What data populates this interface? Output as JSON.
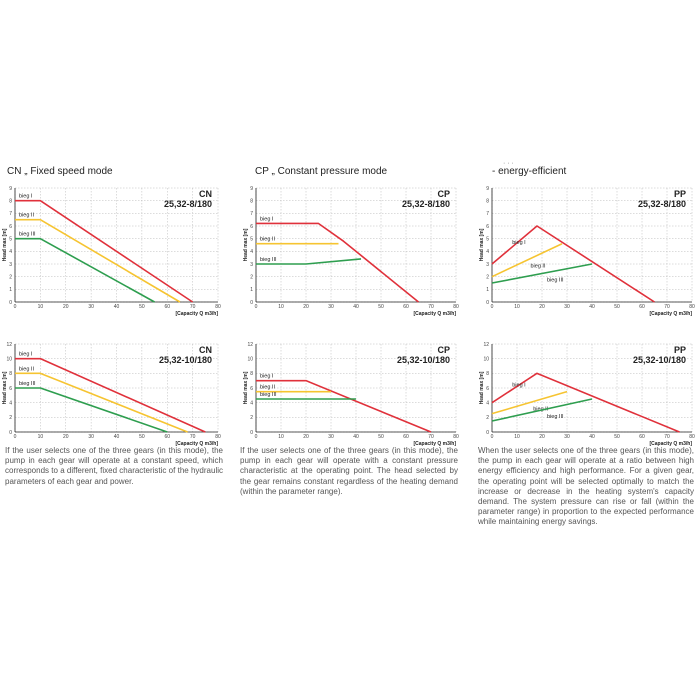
{
  "headings": {
    "cn": "CN „ Fixed speed mode",
    "cp": "CP „ Constant pressure mode",
    "pp": "- energy-efficient"
  },
  "descriptions": {
    "cn": "If the user selects one of the three gears (in this mode), the pump in each gear will operate at a constant speed, which corresponds to a different, fixed characteristic of the hydraulic parameters of each gear and power.",
    "cp": "If the user selects one of the three gears (in this mode), the pump in each gear will operate with a constant pressure characteristic at the operating point. The head selected by the gear remains constant regardless of the heating demand (within the parameter range).",
    "pp": "When the user selects one of the three gears (in this mode), the pump in each gear will operate at a ratio between high energy efficiency and high performance. For a given gear, the operating point will be selected optimally to match the increase or decrease in the heating system's capacity demand. The system pressure can rise or fall (within the parameter range) in proportion to the expected performance while maintaining energy savings."
  },
  "colors": {
    "red": "#e0313b",
    "yellow": "#f6c431",
    "green": "#2e9e4f",
    "grid": "#b8b8b8",
    "axis": "#222222"
  },
  "chart_data": [
    {
      "type": "line",
      "mode": "CN",
      "title": "CN",
      "subtitle": "25,32-8/180",
      "ylabel": "Head max [m]",
      "xlabel": "[Capacity Q m3/h]",
      "xlim": [
        0,
        80
      ],
      "ylim": [
        0,
        9
      ],
      "xticks": [
        "0",
        "10",
        "20",
        "30",
        "40",
        "50",
        "60",
        "70",
        "80"
      ],
      "yticks": [
        "0",
        "1",
        "2",
        "3",
        "4",
        "5",
        "6",
        "7",
        "8",
        "9"
      ],
      "grid": true,
      "series": [
        {
          "name": "bieg I",
          "color": "red",
          "x": [
            0,
            10,
            70
          ],
          "y": [
            8,
            8,
            0
          ]
        },
        {
          "name": "bieg II",
          "color": "yellow",
          "x": [
            0,
            10,
            65
          ],
          "y": [
            6.5,
            6.5,
            0
          ]
        },
        {
          "name": "bieg III",
          "color": "green",
          "x": [
            0,
            10,
            55
          ],
          "y": [
            5,
            5,
            0
          ]
        }
      ]
    },
    {
      "type": "line",
      "mode": "CP",
      "title": "CP",
      "subtitle": "25,32-8/180",
      "ylabel": "Head max [m]",
      "xlabel": "[Capacity Q m3/h]",
      "xlim": [
        0,
        80
      ],
      "ylim": [
        0,
        9
      ],
      "xticks": [
        "0",
        "10",
        "20",
        "30",
        "40",
        "50",
        "60",
        "70",
        "80"
      ],
      "yticks": [
        "0",
        "1",
        "2",
        "3",
        "4",
        "5",
        "6",
        "7",
        "8",
        "9"
      ],
      "grid": true,
      "series": [
        {
          "name": "bieg I",
          "color": "red",
          "x": [
            0,
            25,
            35,
            65
          ],
          "y": [
            6.2,
            6.2,
            4.8,
            0
          ]
        },
        {
          "name": "bieg II",
          "color": "yellow",
          "x": [
            0,
            33
          ],
          "y": [
            4.6,
            4.6
          ]
        },
        {
          "name": "bieg III",
          "color": "green",
          "x": [
            0,
            20,
            42
          ],
          "y": [
            3,
            3,
            3.4
          ]
        }
      ]
    },
    {
      "type": "line",
      "mode": "PP",
      "title": "PP",
      "subtitle": "25,32-8/180",
      "ylabel": "Head max [m]",
      "xlabel": "[Capacity Q m3/h]",
      "xlim": [
        0,
        80
      ],
      "ylim": [
        0,
        9
      ],
      "xticks": [
        "0",
        "10",
        "20",
        "30",
        "40",
        "50",
        "60",
        "70",
        "80"
      ],
      "yticks": [
        "0",
        "1",
        "2",
        "3",
        "4",
        "5",
        "6",
        "7",
        "8",
        "9"
      ],
      "grid": true,
      "series": [
        {
          "name": "bieg I",
          "color": "red",
          "x": [
            0,
            18,
            65
          ],
          "y": [
            3,
            6,
            0
          ]
        },
        {
          "name": "bieg II",
          "color": "yellow",
          "x": [
            0,
            28
          ],
          "y": [
            2,
            4.6
          ]
        },
        {
          "name": "bieg III",
          "color": "green",
          "x": [
            0,
            40
          ],
          "y": [
            1.5,
            3
          ]
        }
      ]
    },
    {
      "type": "line",
      "mode": "CN",
      "title": "CN",
      "subtitle": "25,32-10/180",
      "ylabel": "Head max [m]",
      "xlabel": "[Capacity Q m3/h]",
      "xlim": [
        0,
        80
      ],
      "ylim": [
        0,
        12
      ],
      "xticks": [
        "0",
        "10",
        "20",
        "30",
        "40",
        "50",
        "60",
        "70",
        "80"
      ],
      "yticks": [
        "0",
        "2",
        "4",
        "6",
        "8",
        "10",
        "12"
      ],
      "grid": true,
      "series": [
        {
          "name": "bieg I",
          "color": "red",
          "x": [
            0,
            10,
            75
          ],
          "y": [
            10,
            10,
            0
          ]
        },
        {
          "name": "bieg II",
          "color": "yellow",
          "x": [
            0,
            10,
            68
          ],
          "y": [
            8,
            8,
            0
          ]
        },
        {
          "name": "bieg III",
          "color": "green",
          "x": [
            0,
            10,
            60
          ],
          "y": [
            6,
            6,
            0
          ]
        }
      ]
    },
    {
      "type": "line",
      "mode": "CP",
      "title": "CP",
      "subtitle": "25,32-10/180",
      "ylabel": "Head max [m]",
      "xlabel": "[Capacity Q m3/h]",
      "xlim": [
        0,
        80
      ],
      "ylim": [
        0,
        12
      ],
      "xticks": [
        "0",
        "10",
        "20",
        "30",
        "40",
        "50",
        "60",
        "70",
        "80"
      ],
      "yticks": [
        "0",
        "2",
        "4",
        "6",
        "8",
        "10",
        "12"
      ],
      "grid": true,
      "series": [
        {
          "name": "bieg I",
          "color": "red",
          "x": [
            0,
            20,
            70
          ],
          "y": [
            7,
            7,
            0
          ]
        },
        {
          "name": "bieg II",
          "color": "yellow",
          "x": [
            0,
            30
          ],
          "y": [
            5.5,
            5.5
          ]
        },
        {
          "name": "bieg III",
          "color": "green",
          "x": [
            0,
            40
          ],
          "y": [
            4.5,
            4.5
          ]
        }
      ]
    },
    {
      "type": "line",
      "mode": "PP",
      "title": "PP",
      "subtitle": "25,32-10/180",
      "ylabel": "Head max [m]",
      "xlabel": "[Capacity Q m3/h]",
      "xlim": [
        0,
        80
      ],
      "ylim": [
        0,
        12
      ],
      "xticks": [
        "0",
        "10",
        "20",
        "30",
        "40",
        "50",
        "60",
        "70",
        "80"
      ],
      "yticks": [
        "0",
        "2",
        "4",
        "6",
        "8",
        "10",
        "12"
      ],
      "grid": true,
      "series": [
        {
          "name": "bieg I",
          "color": "red",
          "x": [
            0,
            18,
            75
          ],
          "y": [
            4,
            8,
            0
          ]
        },
        {
          "name": "bieg II",
          "color": "yellow",
          "x": [
            0,
            30
          ],
          "y": [
            2.5,
            5.5
          ]
        },
        {
          "name": "bieg III",
          "color": "green",
          "x": [
            0,
            40
          ],
          "y": [
            1.5,
            4.5
          ]
        }
      ]
    }
  ]
}
